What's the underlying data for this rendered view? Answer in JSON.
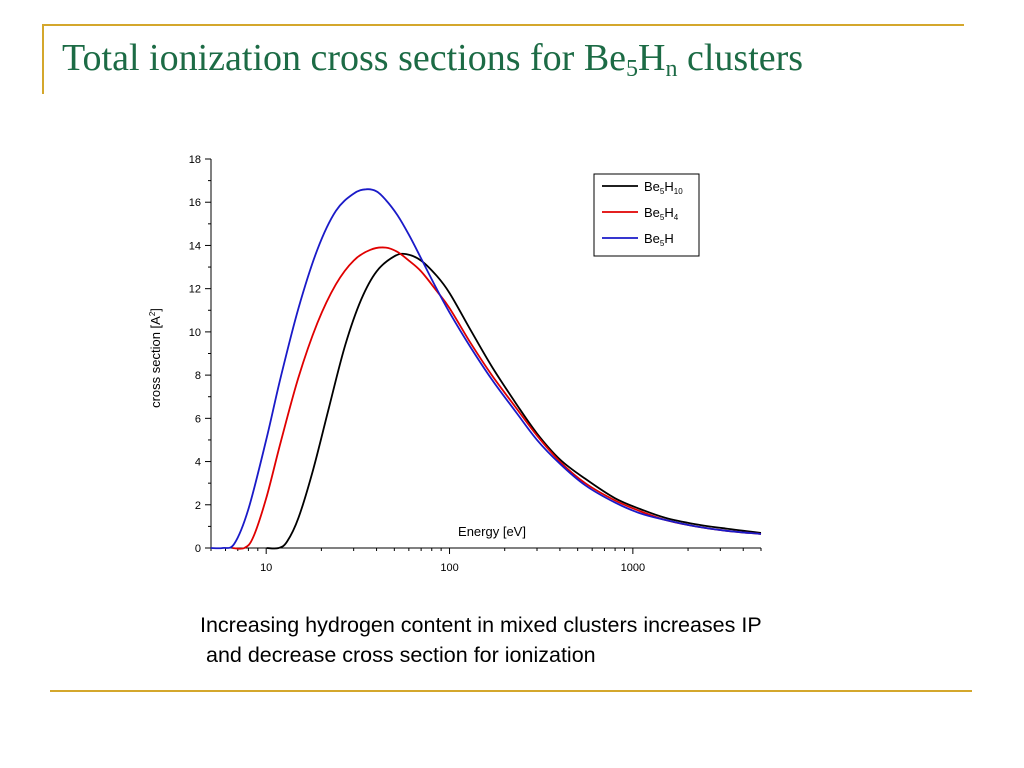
{
  "slide": {
    "title_main": "Total ionization cross sections for Be",
    "title_sub1": "5",
    "title_mid": "H",
    "title_sub2": "n",
    "title_tail": " clusters",
    "caption_line1": "Increasing hydrogen content in mixed clusters increases IP",
    "caption_line2": "and decrease cross section for ionization"
  },
  "colors": {
    "title": "#1c6b45",
    "rule": "#d4a72c"
  },
  "chart_data": {
    "type": "line",
    "title": "",
    "xlabel": "Energy [eV]",
    "ylabel": {
      "main": "cross section [A",
      "sup": "2",
      "tail": "]"
    },
    "xscale": "log",
    "xlim": [
      5,
      5000
    ],
    "ylim": [
      0,
      18
    ],
    "xticks": [
      10,
      100,
      1000
    ],
    "xtick_labels": [
      "10",
      "100",
      "1000"
    ],
    "yticks": [
      0,
      2,
      4,
      6,
      8,
      10,
      12,
      14,
      16,
      18
    ],
    "ytick_labels": [
      "0",
      "2",
      "4",
      "6",
      "8",
      "10",
      "12",
      "14",
      "16",
      "18"
    ],
    "grid": false,
    "legend_position": "top-right",
    "series": [
      {
        "name": "Be5H10",
        "label_parts": [
          [
            "Be",
            ""
          ],
          [
            "5",
            "sub"
          ],
          [
            "H",
            ""
          ],
          [
            "10",
            "sub"
          ]
        ],
        "color": "#000000",
        "x": [
          11.7,
          13,
          15,
          18,
          22,
          27,
          33,
          40,
          50,
          58,
          70,
          85,
          100,
          130,
          170,
          230,
          300,
          400,
          550,
          800,
          1100,
          1500,
          2200,
          3200,
          5000
        ],
        "y": [
          0,
          0.3,
          1.4,
          3.6,
          6.5,
          9.4,
          11.5,
          12.8,
          13.5,
          13.6,
          13.3,
          12.6,
          11.8,
          10.1,
          8.4,
          6.7,
          5.3,
          4.1,
          3.2,
          2.3,
          1.8,
          1.4,
          1.1,
          0.9,
          0.7
        ]
      },
      {
        "name": "Be5H4",
        "label_parts": [
          [
            "Be",
            ""
          ],
          [
            "5",
            "sub"
          ],
          [
            "H",
            ""
          ],
          [
            "4",
            "sub"
          ]
        ],
        "color": "#e00000",
        "x": [
          7.6,
          8.5,
          10,
          12,
          15,
          19,
          24,
          30,
          37,
          45,
          52,
          60,
          70,
          85,
          100,
          130,
          170,
          230,
          300,
          400,
          550,
          800,
          1100,
          1500,
          2200,
          3200,
          5000
        ],
        "y": [
          0,
          0.5,
          2.3,
          4.9,
          7.9,
          10.4,
          12.2,
          13.3,
          13.8,
          13.9,
          13.7,
          13.3,
          12.8,
          11.9,
          11.1,
          9.5,
          8.0,
          6.5,
          5.2,
          4.0,
          3.0,
          2.2,
          1.7,
          1.3,
          1.0,
          0.8,
          0.65
        ]
      },
      {
        "name": "Be5H",
        "label_parts": [
          [
            "Be",
            ""
          ],
          [
            "5",
            "sub"
          ],
          [
            "H",
            ""
          ]
        ],
        "color": "#1a1ac8",
        "x": [
          5.8,
          6.7,
          8,
          10,
          12,
          15,
          19,
          24,
          30,
          35,
          40,
          45,
          52,
          60,
          70,
          85,
          100,
          130,
          170,
          230,
          300,
          400,
          550,
          800,
          1100,
          1500,
          2200,
          3200,
          5000
        ],
        "y": [
          0,
          0.2,
          1.8,
          5.0,
          7.9,
          11.1,
          13.8,
          15.6,
          16.4,
          16.6,
          16.5,
          16.1,
          15.4,
          14.5,
          13.4,
          12.0,
          10.9,
          9.3,
          7.8,
          6.3,
          5.0,
          3.9,
          2.9,
          2.1,
          1.6,
          1.3,
          1.0,
          0.8,
          0.65
        ]
      }
    ]
  }
}
